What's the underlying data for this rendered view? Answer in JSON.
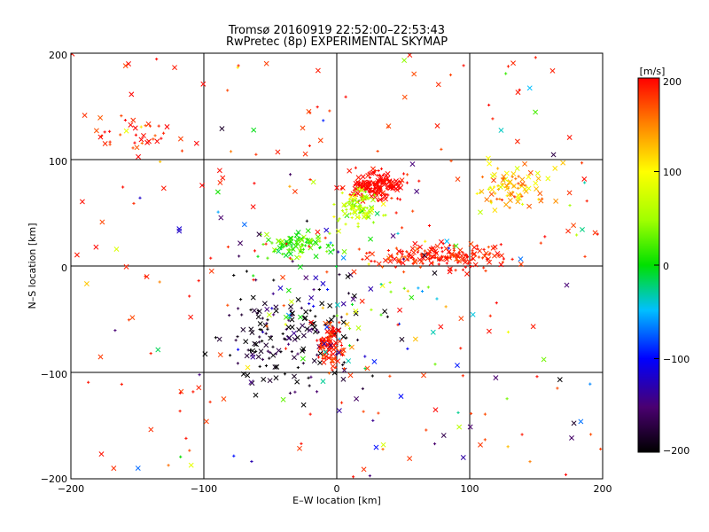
{
  "chart_data": {
    "type": "scatter",
    "title": "Tromsø 20160919 22:52:00–22:53:43",
    "subtitle": "RwPretec (8p) EXPERIMENTAL SKYMAP",
    "xlabel": "E–W location [km]",
    "ylabel": "N–S location [km]",
    "xlim": [
      -200,
      200
    ],
    "ylim": [
      -200,
      200
    ],
    "xticks": [
      "−200",
      "−100",
      "0",
      "100",
      "200"
    ],
    "yticks": [
      "200",
      "100",
      "0",
      "−100",
      "−200"
    ],
    "grid": true,
    "colorbar": {
      "label": "[m/s]",
      "range": [
        -200,
        200
      ],
      "ticks": [
        "200",
        "100",
        "0",
        "−100",
        "−200"
      ]
    },
    "markers": [
      "cross (x)",
      "plus (+)"
    ],
    "clusters": [
      {
        "name": "north-central jet",
        "x": 30,
        "y": 75,
        "value": 200,
        "density": "high"
      },
      {
        "name": "eastward red band",
        "x": 80,
        "y": 10,
        "value": 190,
        "density": "high"
      },
      {
        "name": "central cyan cluster",
        "x": -30,
        "y": 20,
        "value": 20,
        "density": "medium"
      },
      {
        "name": "central green cluster",
        "x": 15,
        "y": 55,
        "value": 60,
        "density": "medium"
      },
      {
        "name": "southern dark cluster",
        "x": -35,
        "y": -70,
        "value": -190,
        "density": "high"
      },
      {
        "name": "south-central red column",
        "x": -5,
        "y": -75,
        "value": 190,
        "density": "medium"
      },
      {
        "name": "north-east orange patch",
        "x": 130,
        "y": 75,
        "value": 120,
        "density": "medium"
      },
      {
        "name": "north-west red arc",
        "x": -150,
        "y": 120,
        "value": 190,
        "density": "low"
      },
      {
        "name": "southern mixed scatter",
        "x": 10,
        "y": -40,
        "value": -60,
        "density": "medium"
      }
    ]
  }
}
